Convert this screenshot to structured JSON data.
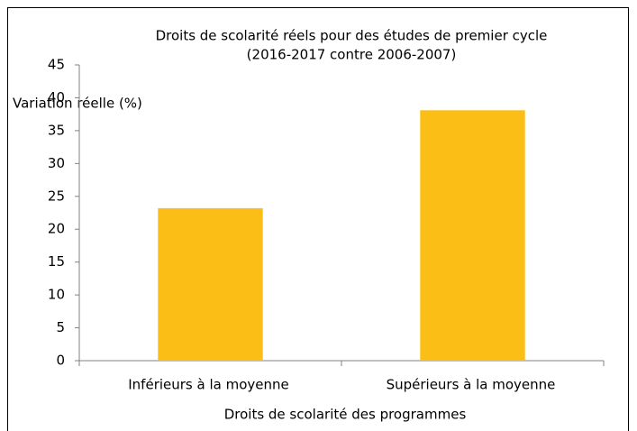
{
  "chart_data": {
    "type": "bar",
    "title": "Droits de scolarité réels pour des études de premier cycle",
    "subtitle": "(2016-2017 contre 2006-2007)",
    "y_label": "Variation réelle (%)",
    "x_label": "Droits de scolarité des programmes",
    "categories": [
      "Inférieurs à la moyenne",
      "Supérieurs à la moyenne"
    ],
    "values": [
      23.2,
      38.1
    ],
    "color": "#fbbe17",
    "ylim": [
      0,
      45
    ],
    "yticks": [
      0,
      5,
      10,
      15,
      20,
      25,
      30,
      35,
      40,
      45
    ],
    "grid": false
  }
}
